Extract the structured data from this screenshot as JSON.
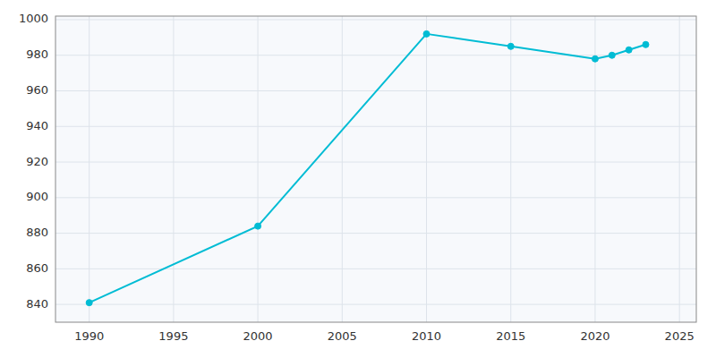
{
  "chart_data": {
    "type": "line",
    "x": [
      1990,
      2000,
      2010,
      2015,
      2020,
      2021,
      2022,
      2023
    ],
    "values": [
      841,
      884,
      992,
      985,
      978,
      980,
      983,
      986
    ],
    "color": "#00bcd4",
    "marker": "circle",
    "xlim": [
      1988,
      2026
    ],
    "ylim": [
      830,
      1002
    ],
    "xticks": [
      1990,
      1995,
      2000,
      2005,
      2010,
      2015,
      2020,
      2025
    ],
    "yticks": [
      840,
      860,
      880,
      900,
      920,
      940,
      960,
      980,
      1000
    ],
    "grid": true
  }
}
